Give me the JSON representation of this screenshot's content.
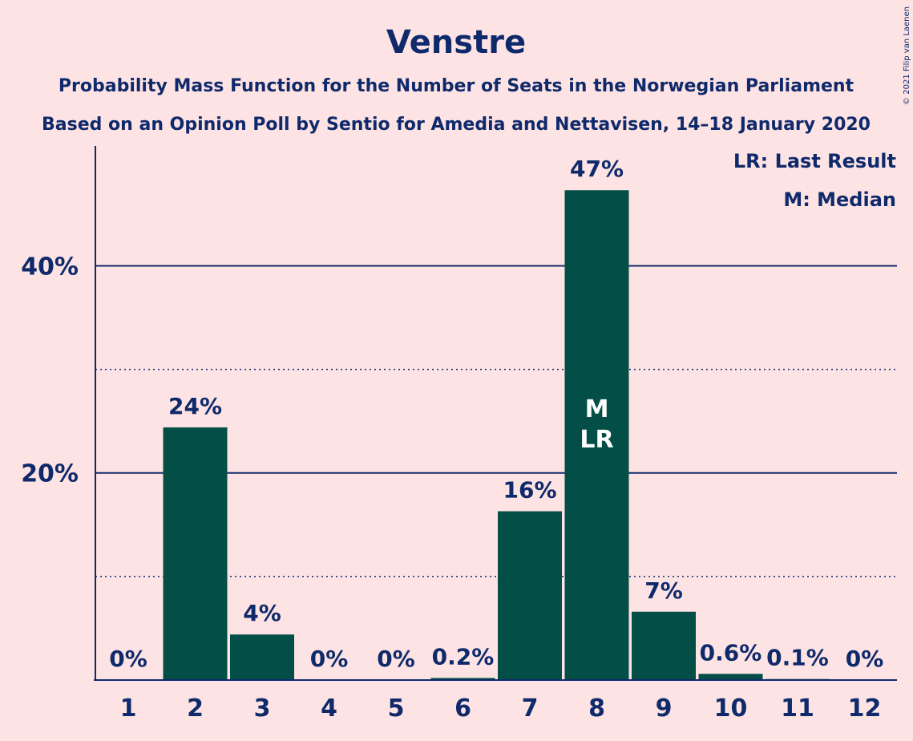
{
  "chart_data": {
    "type": "bar",
    "title": "Venstre",
    "subtitle1": "Probability Mass Function for the Number of Seats in the Norwegian Parliament",
    "subtitle2": "Based on an Opinion Poll by Sentio for Amedia and Nettavisen, 14–18 January 2020",
    "copyright": "© 2021 Filip van Laenen",
    "categories": [
      "1",
      "2",
      "3",
      "4",
      "5",
      "6",
      "7",
      "8",
      "9",
      "10",
      "11",
      "12"
    ],
    "values": [
      0,
      24.4,
      4.4,
      0,
      0,
      0.2,
      16.3,
      47.3,
      6.6,
      0.6,
      0.1,
      0
    ],
    "value_labels": [
      "0%",
      "24%",
      "4%",
      "0%",
      "0%",
      "0.2%",
      "16%",
      "47%",
      "7%",
      "0.6%",
      "0.1%",
      "0%"
    ],
    "ylim": [
      0,
      51.5
    ],
    "y_ticks_major": [
      20,
      40
    ],
    "y_tick_labels": [
      "20%",
      "40%"
    ],
    "y_ticks_minor": [
      10,
      30
    ],
    "median_category": "8",
    "last_result_category": "8",
    "median_marker": "M",
    "last_result_marker": "LR",
    "legend": [
      "LR: Last Result",
      "M: Median"
    ],
    "legend_position": "top-right",
    "colors": {
      "bar": "#034f47",
      "background": "#fde3e4",
      "text": "#0f2a6b",
      "inbar_text": "#ffffff"
    }
  }
}
